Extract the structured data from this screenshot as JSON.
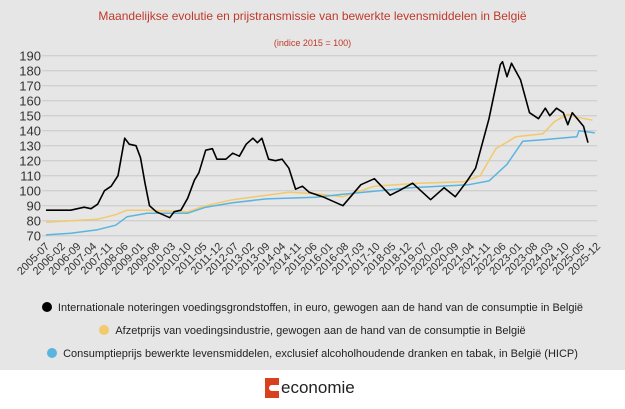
{
  "chart_data": {
    "type": "line",
    "title": "Maandelijkse evolutie en prijstransmissie van bewerkte levensmiddelen in België",
    "subtitle": "(indice 2015 = 100)",
    "xlabel": "",
    "ylabel": "",
    "ylim": [
      70,
      190
    ],
    "yticks": [
      "190",
      "180",
      "170",
      "160",
      "150",
      "140",
      "130",
      "120",
      "110",
      "100",
      "90",
      "80",
      "70"
    ],
    "xticks": [
      "2005-07",
      "2006-02",
      "2006-09",
      "2007-04",
      "2007-11",
      "2008-06",
      "2009-01",
      "2009-08",
      "2010-03",
      "2010-10",
      "2011-05",
      "2011-12",
      "2012-07",
      "2013-02",
      "2013-09",
      "2014-04",
      "2014-11",
      "2015-06",
      "2016-01",
      "2016-08",
      "2017-03",
      "2017-10",
      "2018-05",
      "2018-12",
      "2019-07",
      "2020-02",
      "2020-09",
      "2021-04",
      "2021-11",
      "2022-06",
      "2023-01",
      "2023-08",
      "2024-03",
      "2024-10",
      "2025-05",
      "2025-12"
    ],
    "grid": true,
    "legend_placement": "bottom",
    "series": [
      {
        "name": "Internationale noteringen voedingsgrondstoffen, in euro, gewogen aan de hand van de consumptie in België",
        "color": "#000000",
        "x": [
          "2005-07",
          "2006-06",
          "2006-12",
          "2007-03",
          "2007-06",
          "2007-09",
          "2007-12",
          "2008-03",
          "2008-06",
          "2008-08",
          "2008-11",
          "2009-01",
          "2009-03",
          "2009-05",
          "2009-08",
          "2009-11",
          "2010-02",
          "2010-04",
          "2010-07",
          "2010-10",
          "2011-01",
          "2011-03",
          "2011-06",
          "2011-09",
          "2011-11",
          "2012-03",
          "2012-06",
          "2012-09",
          "2012-12",
          "2013-03",
          "2013-05",
          "2013-07",
          "2013-10",
          "2014-01",
          "2014-04",
          "2014-07",
          "2014-10",
          "2015-01",
          "2015-04",
          "2015-10",
          "2016-07",
          "2017-03",
          "2017-09",
          "2018-04",
          "2018-08",
          "2019-02",
          "2019-10",
          "2020-04",
          "2020-09",
          "2021-02",
          "2021-06",
          "2021-12",
          "2022-05",
          "2022-06",
          "2022-08",
          "2022-10",
          "2023-02",
          "2023-06",
          "2023-10",
          "2024-01",
          "2024-03",
          "2024-06",
          "2024-09",
          "2024-11",
          "2025-01",
          "2025-06",
          "2025-08"
        ],
        "values": [
          87,
          87,
          89,
          88,
          91,
          100,
          103,
          110,
          135,
          131,
          130,
          122,
          105,
          90,
          86,
          84,
          82,
          86,
          87,
          95,
          107,
          112,
          127,
          128,
          121,
          121,
          125,
          123,
          131,
          135,
          132,
          135,
          121,
          120,
          121,
          115,
          101,
          103,
          99,
          96,
          90,
          104,
          108,
          97,
          100,
          105,
          94,
          102,
          96,
          106,
          115,
          148,
          184,
          186,
          176,
          185,
          174,
          152,
          148,
          155,
          150,
          155,
          152,
          144,
          152,
          143,
          132
        ]
      },
      {
        "name": "Afzetprijs van voedingsindustrie, gewogen aan de hand van de consumptie in België",
        "color": "#f2c96b",
        "x": [
          "2005-07",
          "2006-06",
          "2007-06",
          "2008-02",
          "2008-07",
          "2009-04",
          "2010-10",
          "2011-06",
          "2012-06",
          "2013-09",
          "2014-07",
          "2015-07",
          "2016-07",
          "2017-09",
          "2019-05",
          "2021-01",
          "2021-08",
          "2022-03",
          "2022-12",
          "2023-12",
          "2024-05",
          "2024-11",
          "2025-03",
          "2025-10"
        ],
        "values": [
          79,
          80,
          81,
          84,
          87,
          87,
          86,
          90,
          94,
          97,
          99,
          98,
          96,
          103,
          105,
          106,
          110,
          128,
          136,
          138,
          146,
          151,
          149,
          147
        ]
      },
      {
        "name": "Consumptieprijs bewerkte levensmiddelen, exclusief alcoholhoudende dranken en tabak, in België (HICP)",
        "color": "#5ab4e0",
        "x": [
          "2005-07",
          "2006-06",
          "2007-06",
          "2008-02",
          "2008-07",
          "2009-04",
          "2010-10",
          "2011-06",
          "2012-06",
          "2013-09",
          "2015-07",
          "2016-07",
          "2019-01",
          "2021-03",
          "2021-12",
          "2022-08",
          "2023-03",
          "2023-12",
          "2025-03",
          "2025-04",
          "2025-11"
        ],
        "values": [
          70.5,
          71.6,
          74,
          77,
          82.6,
          85,
          85,
          89,
          92,
          94.5,
          95.6,
          97.6,
          102,
          104,
          106.5,
          117.6,
          133,
          134,
          136,
          140,
          138.5
        ]
      }
    ]
  },
  "footer": {
    "logo_text": "economie"
  }
}
